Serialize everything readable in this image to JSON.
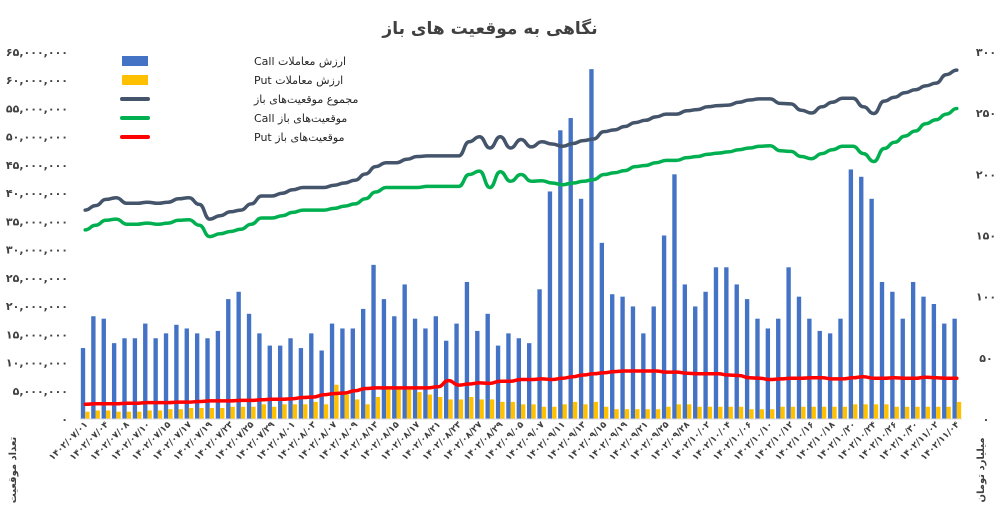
{
  "chart_data": {
    "type": "bar",
    "title": "نگاهی به موقعیت های باز",
    "ylabel_left": "تعداد موقعیت",
    "ylabel_right": "میلیارد تومان",
    "ylim_left": [
      0,
      65000000
    ],
    "ylim_right": [
      0,
      300
    ],
    "yticks_left": [
      "۰",
      "۵,۰۰۰,۰۰۰",
      "۱۰,۰۰۰,۰۰۰",
      "۱۵,۰۰۰,۰۰۰",
      "۲۰,۰۰۰,۰۰۰",
      "۲۵,۰۰۰,۰۰۰",
      "۳۰,۰۰۰,۰۰۰",
      "۳۵,۰۰۰,۰۰۰",
      "۴۰,۰۰۰,۰۰۰",
      "۴۵,۰۰۰,۰۰۰",
      "۵۰,۰۰۰,۰۰۰",
      "۵۵,۰۰۰,۰۰۰",
      "۶۰,۰۰۰,۰۰۰",
      "۶۵,۰۰۰,۰۰۰"
    ],
    "yticks_right": [
      "۰",
      "۵۰",
      "۱۰۰",
      "۱۵۰",
      "۲۰۰",
      "۲۵۰",
      "۳۰۰"
    ],
    "x_tick_labels": [
      "۱۴۰۲/۰۷/۰۱",
      "۱۴۰۲/۰۷/۰۴",
      "۱۴۰۲/۰۷/۰۸",
      "۱۴۰۲/۰۷/۱۰",
      "۱۴۰۲/۰۷/۱۵",
      "۱۴۰۲/۰۷/۱۷",
      "۱۴۰۲/۰۷/۱۹",
      "۱۴۰۲/۰۷/۲۳",
      "۱۴۰۲/۰۷/۲۵",
      "۱۴۰۲/۰۷/۲۹",
      "۱۴۰۲/۰۸/۰۱",
      "۱۴۰۲/۰۸/۰۳",
      "۱۴۰۲/۰۸/۰۷",
      "۱۴۰۲/۰۸/۰۹",
      "۱۴۰۲/۰۸/۱۳",
      "۱۴۰۲/۰۸/۱۵",
      "۱۴۰۲/۰۸/۱۷",
      "۱۴۰۲/۰۸/۲۱",
      "۱۴۰۲/۰۸/۲۳",
      "۱۴۰۲/۰۸/۲۷",
      "۱۴۰۲/۰۸/۲۹",
      "۱۴۰۲/۰۹/۰۵",
      "۱۴۰۲/۰۹/۰۷",
      "۱۴۰۲/۰۹/۱۱",
      "۱۴۰۲/۰۹/۱۳",
      "۱۴۰۲/۰۹/۱۵",
      "۱۴۰۲/۰۹/۱۹",
      "۱۴۰۲/۰۹/۲۱",
      "۱۴۰۲/۰۹/۲۵",
      "۱۴۰۲/۰۹/۲۸",
      "۱۴۰۲/۱۰/۰۲",
      "۱۴۰۲/۱۰/۰۴",
      "۱۴۰۲/۱۰/۰۶",
      "۱۴۰۲/۱۰/۱۰",
      "۱۴۰۲/۱۰/۱۲",
      "۱۴۰۲/۱۰/۱۶",
      "۱۴۰۲/۱۰/۱۸",
      "۱۴۰۲/۱۰/۲۰",
      "۱۴۰۲/۱۰/۲۴",
      "۱۴۰۲/۱۰/۲۶",
      "۱۴۰۲/۱۰/۳۰",
      "۱۴۰۲/۱۱/۰۲",
      "۱۴۰۲/۱۱/۰۴"
    ],
    "series": [
      {
        "name": "ارزش معاملات Call",
        "type": "bar",
        "axis": "right",
        "color": "#4472c4",
        "values": [
          58,
          84,
          82,
          62,
          66,
          66,
          78,
          66,
          70,
          77,
          74,
          70,
          66,
          72,
          98,
          104,
          86,
          70,
          60,
          60,
          66,
          58,
          70,
          56,
          78,
          74,
          74,
          90,
          126,
          98,
          84,
          110,
          82,
          74,
          84,
          64,
          78,
          112,
          72,
          86,
          60,
          70,
          66,
          62,
          106,
          186,
          236,
          246,
          180,
          286,
          144,
          102,
          100,
          92,
          70,
          92,
          150,
          200,
          110,
          92,
          104,
          124,
          124,
          110,
          98,
          82,
          74,
          82,
          124,
          100,
          82,
          72,
          70,
          82,
          204,
          198,
          180,
          112,
          104,
          82,
          112,
          100,
          94,
          78,
          82
        ]
      },
      {
        "name": "ارزش معاملات Put",
        "type": "bar",
        "axis": "right",
        "color": "#ffc000",
        "values": [
          6,
          7,
          7,
          6,
          6,
          6,
          7,
          7,
          8,
          8,
          9,
          9,
          9,
          9,
          10,
          10,
          10,
          12,
          10,
          12,
          12,
          12,
          14,
          12,
          28,
          20,
          16,
          12,
          18,
          24,
          26,
          24,
          22,
          20,
          18,
          16,
          16,
          18,
          16,
          16,
          14,
          14,
          12,
          12,
          10,
          10,
          12,
          14,
          12,
          14,
          10,
          8,
          8,
          8,
          8,
          8,
          10,
          12,
          12,
          10,
          10,
          10,
          10,
          10,
          8,
          8,
          8,
          10,
          10,
          10,
          10,
          10,
          10,
          10,
          12,
          12,
          12,
          12,
          10,
          10,
          10,
          10,
          10,
          10,
          14
        ]
      },
      {
        "name": "مجموع موقعیت‌های باز",
        "type": "line",
        "axis": "left",
        "color": "#44546a",
        "values": [
          37000000,
          37800000,
          38900000,
          39200000,
          38200000,
          38200000,
          38400000,
          38200000,
          38400000,
          39000000,
          39200000,
          38000000,
          35400000,
          36000000,
          36700000,
          37000000,
          38100000,
          39500000,
          39500000,
          40000000,
          40600000,
          41000000,
          41000000,
          41000000,
          41400000,
          41800000,
          42300000,
          43400000,
          44700000,
          45400000,
          45400000,
          46000000,
          46500000,
          46600000,
          46600000,
          46600000,
          46600000,
          49100000,
          50000000,
          48000000,
          50000000,
          48000000,
          49500000,
          48200000,
          49100000,
          48700000,
          48300000,
          48800000,
          49300000,
          49600000,
          50900000,
          51200000,
          51800000,
          52500000,
          52900000,
          53500000,
          54000000,
          54000000,
          54600000,
          54800000,
          55300000,
          55500000,
          55600000,
          56100000,
          56500000,
          56700000,
          56700000,
          55900000,
          55800000,
          54700000,
          54200000,
          55300000,
          56100000,
          56800000,
          56800000,
          55300000,
          54100000,
          56300000,
          57000000,
          57800000,
          58300000,
          59000000,
          59500000,
          61000000,
          61800000
        ]
      },
      {
        "name": "موقعیت‌های باز Call",
        "type": "line",
        "axis": "left",
        "color": "#00b050",
        "values": [
          33500000,
          34300000,
          35200000,
          35400000,
          34500000,
          34500000,
          34700000,
          34500000,
          34700000,
          35200000,
          35300000,
          34300000,
          32300000,
          32800000,
          33200000,
          33600000,
          34500000,
          35600000,
          35600000,
          36000000,
          36600000,
          37000000,
          37000000,
          37000000,
          37300000,
          37700000,
          38100000,
          39000000,
          40200000,
          41000000,
          41000000,
          41000000,
          41000000,
          41200000,
          41200000,
          41200000,
          41200000,
          43300000,
          43900000,
          41000000,
          43800000,
          42100000,
          43300000,
          42100000,
          42200000,
          41800000,
          41500000,
          41800000,
          42100000,
          42400000,
          43300000,
          43600000,
          44000000,
          44700000,
          44900000,
          45400000,
          45800000,
          45800000,
          46300000,
          46500000,
          46900000,
          47100000,
          47300000,
          47700000,
          48000000,
          48300000,
          48400000,
          47500000,
          47400000,
          46500000,
          46100000,
          47000000,
          47700000,
          48300000,
          48300000,
          47000000,
          45600000,
          47900000,
          49000000,
          50100000,
          51000000,
          52300000,
          53000000,
          54000000,
          55000000
        ]
      },
      {
        "name": "موقعیت‌های باز Put",
        "type": "line",
        "axis": "left",
        "color": "#ff0000",
        "values": [
          2600000,
          2700000,
          2700000,
          2700000,
          2800000,
          2800000,
          2900000,
          2900000,
          2900000,
          3000000,
          3000000,
          3100000,
          3200000,
          3200000,
          3200000,
          3300000,
          3300000,
          3400000,
          3500000,
          3500000,
          3600000,
          3800000,
          3900000,
          4300000,
          4500000,
          4600000,
          5000000,
          5400000,
          5500000,
          5500000,
          5500000,
          5500000,
          5500000,
          5500000,
          5700000,
          6800000,
          6000000,
          6200000,
          6400000,
          6300000,
          6700000,
          6700000,
          7000000,
          7000000,
          7100000,
          7000000,
          7200000,
          7500000,
          7800000,
          8000000,
          8200000,
          8400000,
          8500000,
          8500000,
          8500000,
          8500000,
          8300000,
          8300000,
          8100000,
          8000000,
          8000000,
          8000000,
          7800000,
          7700000,
          7300000,
          7200000,
          7000000,
          7100000,
          7200000,
          7200000,
          7300000,
          7300000,
          7100000,
          7100000,
          7300000,
          7500000,
          7200000,
          7200000,
          7300000,
          7200000,
          7200000,
          7400000,
          7300000,
          7200000,
          7200000
        ]
      }
    ],
    "legend_position": "top-left",
    "grid": false
  }
}
